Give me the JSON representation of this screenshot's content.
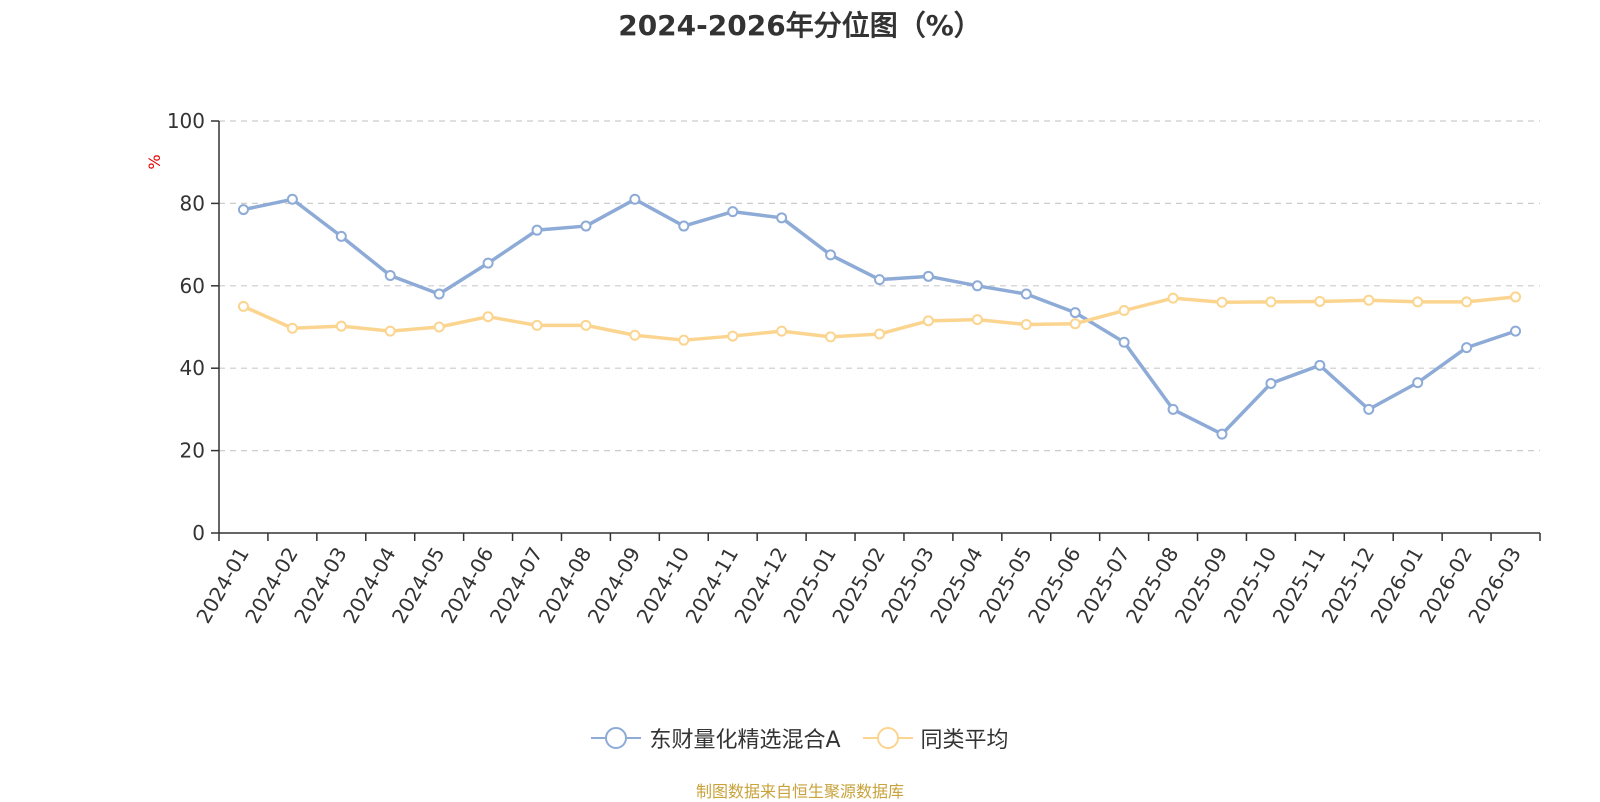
{
  "colors": {
    "series1": "#8dabd6",
    "series2": "#fbd590",
    "grid": "#cccccc",
    "axis": "#333333",
    "source": "#c8a23a",
    "unit": "#e60000"
  },
  "source_note": "制图数据来自恒生聚源数据库",
  "chart_data": {
    "type": "line",
    "title": "2024-2026年分位图（%）",
    "ylabel": "%",
    "xlabel": "",
    "ylim": [
      0,
      100
    ],
    "yticks": [
      0,
      20,
      40,
      60,
      80,
      100
    ],
    "grid": true,
    "legend_position": "bottom-center",
    "categories": [
      "2024-01",
      "2024-02",
      "2024-03",
      "2024-04",
      "2024-05",
      "2024-06",
      "2024-07",
      "2024-08",
      "2024-09",
      "2024-10",
      "2024-11",
      "2024-12",
      "2025-01",
      "2025-02",
      "2025-03",
      "2025-04",
      "2025-05",
      "2025-06",
      "2025-07",
      "2025-08",
      "2025-09",
      "2025-10",
      "2025-11",
      "2025-12",
      "2026-01",
      "2026-02",
      "2026-03"
    ],
    "series": [
      {
        "name": "东财量化精选混合A",
        "values": [
          78.5,
          81,
          72,
          62.5,
          58,
          65.5,
          73.5,
          74.5,
          81,
          74.5,
          78,
          76.5,
          67.5,
          61.5,
          62.3,
          60,
          58,
          53.5,
          46.3,
          30,
          24,
          36.3,
          40.7,
          30,
          36.5,
          45,
          49
        ]
      },
      {
        "name": "同类平均",
        "values": [
          55,
          49.7,
          50.2,
          49,
          50,
          52.5,
          50.4,
          50.4,
          48,
          46.8,
          47.8,
          49,
          47.6,
          48.3,
          51.5,
          51.8,
          50.6,
          50.8,
          54,
          57,
          56,
          56.1,
          56.2,
          56.5,
          56.1,
          56.1,
          57.3
        ]
      }
    ]
  }
}
